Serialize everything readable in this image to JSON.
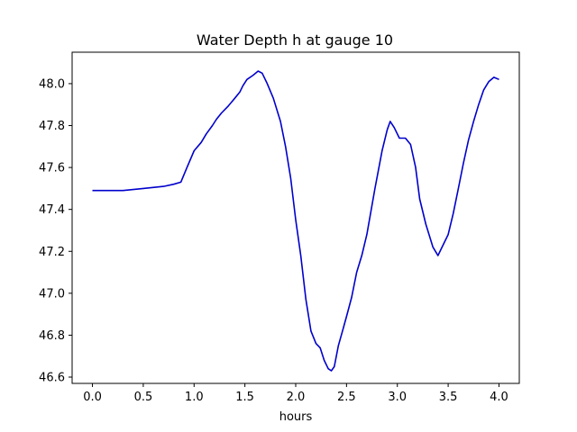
{
  "chart_data": {
    "type": "line",
    "title": "Water Depth h at gauge 10",
    "xlabel": "hours",
    "ylabel": "",
    "xlim": [
      -0.2,
      4.2
    ],
    "ylim": [
      46.57,
      48.15
    ],
    "xticks": [
      0.0,
      0.5,
      1.0,
      1.5,
      2.0,
      2.5,
      3.0,
      3.5,
      4.0
    ],
    "xtick_labels": [
      "0.0",
      "0.5",
      "1.0",
      "1.5",
      "2.0",
      "2.5",
      "3.0",
      "3.5",
      "4.0"
    ],
    "yticks": [
      46.6,
      46.8,
      47.0,
      47.2,
      47.4,
      47.6,
      47.8,
      48.0
    ],
    "ytick_labels": [
      "46.6",
      "46.8",
      "47.0",
      "47.2",
      "47.4",
      "47.6",
      "47.8",
      "48.0"
    ],
    "grid": false,
    "series": [
      {
        "color": "#0000cc",
        "x": [
          0.0,
          0.3,
          0.5,
          0.7,
          0.8,
          0.87,
          0.93,
          1.0,
          1.07,
          1.12,
          1.18,
          1.22,
          1.27,
          1.33,
          1.4,
          1.45,
          1.48,
          1.52,
          1.58,
          1.63,
          1.67,
          1.72,
          1.78,
          1.85,
          1.9,
          1.95,
          2.0,
          2.05,
          2.1,
          2.15,
          2.2,
          2.24,
          2.28,
          2.32,
          2.35,
          2.38,
          2.42,
          2.46,
          2.5,
          2.55,
          2.6,
          2.65,
          2.7,
          2.78,
          2.85,
          2.9,
          2.93,
          2.97,
          3.02,
          3.08,
          3.13,
          3.18,
          3.22,
          3.28,
          3.35,
          3.4,
          3.43,
          3.5,
          3.55,
          3.6,
          3.65,
          3.7,
          3.75,
          3.8,
          3.85,
          3.9,
          3.95,
          4.0
        ],
        "values": [
          47.49,
          47.49,
          47.5,
          47.51,
          47.52,
          47.53,
          47.6,
          47.68,
          47.72,
          47.76,
          47.8,
          47.83,
          47.86,
          47.89,
          47.93,
          47.96,
          47.99,
          48.02,
          48.04,
          48.06,
          48.05,
          48.0,
          47.93,
          47.82,
          47.7,
          47.55,
          47.35,
          47.18,
          46.97,
          46.82,
          46.76,
          46.74,
          46.68,
          46.64,
          46.63,
          46.65,
          46.75,
          46.82,
          46.89,
          46.98,
          47.1,
          47.18,
          47.28,
          47.5,
          47.68,
          47.78,
          47.82,
          47.79,
          47.74,
          47.74,
          47.71,
          47.6,
          47.45,
          47.33,
          47.22,
          47.18,
          47.21,
          47.28,
          47.38,
          47.5,
          47.62,
          47.73,
          47.82,
          47.9,
          47.97,
          48.01,
          48.03,
          48.02
        ]
      }
    ]
  }
}
